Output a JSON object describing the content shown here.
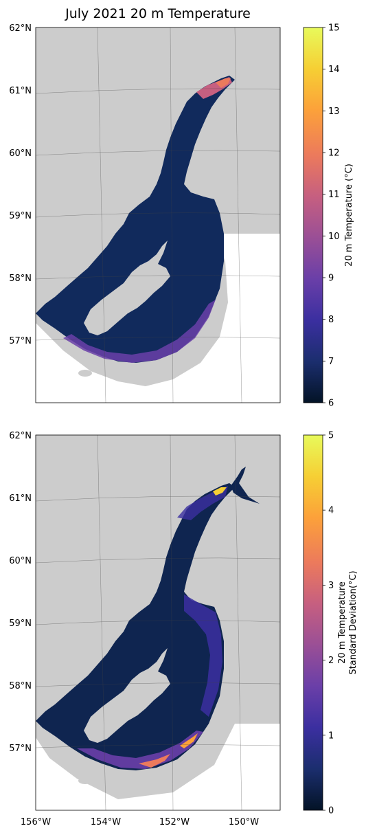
{
  "figure": {
    "title": "July 2021 20 m Temperature"
  },
  "map_axes": {
    "lat_ticks": [
      "62°N",
      "61°N",
      "60°N",
      "59°N",
      "58°N",
      "57°N"
    ],
    "lon_ticks": [
      "156°W",
      "154°W",
      "152°W",
      "150°W"
    ],
    "land_color": "#cccccc",
    "ocean_color": "#ffffff"
  },
  "panels": [
    {
      "id": "mean",
      "colorbar": {
        "label": "20 m Temperature (°C)",
        "range": [
          6,
          15
        ],
        "ticks": [
          "6",
          "7",
          "8",
          "9",
          "10",
          "11",
          "12",
          "13",
          "14",
          "15"
        ],
        "colormap": [
          "#031326",
          "#1b2e6e",
          "#3b2fa0",
          "#6a3fa8",
          "#9a4f96",
          "#c65f80",
          "#ec7a5c",
          "#fca13a",
          "#f6cf34",
          "#e8fa5b"
        ]
      }
    },
    {
      "id": "stddev",
      "colorbar": {
        "label_line1": "20 m Temperature",
        "label_line2": "Standard Deviation(°C)",
        "range": [
          0,
          5
        ],
        "ticks": [
          "0",
          "1",
          "2",
          "3",
          "4",
          "5"
        ],
        "colormap": [
          "#031326",
          "#1b2e6e",
          "#3b2fa0",
          "#6a3fa8",
          "#9a4f96",
          "#c65f80",
          "#ec7a5c",
          "#fca13a",
          "#f6cf34",
          "#e8fa5b"
        ]
      }
    }
  ]
}
